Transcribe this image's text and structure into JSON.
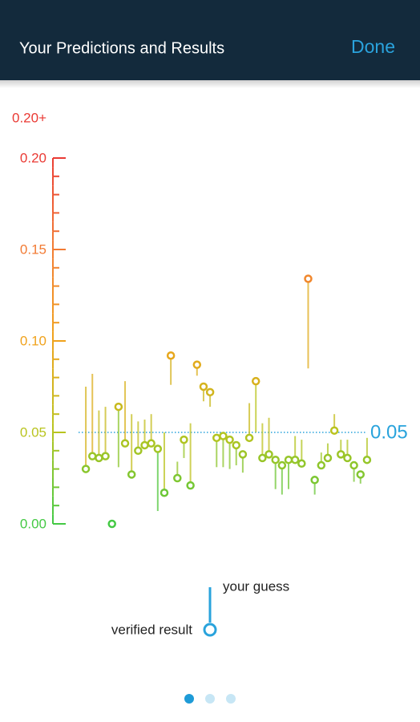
{
  "header": {
    "title": "Your Predictions and Results",
    "action": "Done"
  },
  "chart_data": {
    "type": "lollipop",
    "overflow_label": "0.20+",
    "x": [
      1,
      2,
      3,
      4,
      5,
      6,
      7,
      8,
      9,
      10,
      11,
      12,
      13,
      14,
      15,
      16,
      17,
      18,
      19,
      20,
      21,
      22,
      23,
      24,
      25,
      26,
      27,
      28,
      29,
      30,
      31,
      32,
      33,
      34,
      35,
      36,
      37,
      38,
      39,
      40,
      41,
      42,
      43,
      44
    ],
    "xlim": [
      0.5,
      44.5
    ],
    "ylim": [
      0,
      0.2
    ],
    "yticks": [
      {
        "value": 0,
        "label": "0.00"
      },
      0.05,
      {
        "value": 0.1,
        "label": "0.10"
      },
      0.15,
      {
        "value": 0.2,
        "label": "0.20"
      }
    ],
    "minor_yticks": [
      0.01,
      0.02,
      0.03,
      0.04,
      0.06,
      0.07,
      0.08,
      0.09,
      0.11,
      0.12,
      0.13,
      0.14,
      0.16,
      0.17,
      0.18,
      0.19
    ],
    "color_scale": [
      "#44c944",
      "#b9c41f",
      "#f0a21c",
      "#f27b34",
      "#ea3a34"
    ],
    "reference_line": {
      "value": 0.05,
      "color": "#29a3dc"
    },
    "series": [
      {
        "name": "your guess",
        "values": [
          0.075,
          0.082,
          0.062,
          0.064,
          0.002,
          0.031,
          0.078,
          0.06,
          0.056,
          0.057,
          0.06,
          0.007,
          0.05,
          0.076,
          0.034,
          0.036,
          0.055,
          0.081,
          0.067,
          0.064,
          0.031,
          0.031,
          0.03,
          0.032,
          0.028,
          0.066,
          0.05,
          0.055,
          0.058,
          0.019,
          0.016,
          0.019,
          0.048,
          0.046,
          0.085,
          0.016,
          0.039,
          0.044,
          0.06,
          0.046,
          0.046,
          0.023,
          0.022,
          0.047
        ]
      },
      {
        "name": "verified result",
        "values": [
          0.03,
          0.037,
          0.036,
          0.037,
          0.0,
          0.064,
          0.044,
          0.027,
          0.04,
          0.043,
          0.044,
          0.041,
          0.017,
          0.092,
          0.025,
          0.046,
          0.021,
          0.087,
          0.075,
          0.072,
          0.047,
          0.048,
          0.046,
          0.043,
          0.038,
          0.047,
          0.078,
          0.036,
          0.038,
          0.035,
          0.032,
          0.035,
          0.035,
          0.033,
          0.134,
          0.024,
          0.032,
          0.036,
          0.051,
          0.038,
          0.036,
          0.032,
          0.027,
          0.035
        ]
      }
    ]
  }
}
